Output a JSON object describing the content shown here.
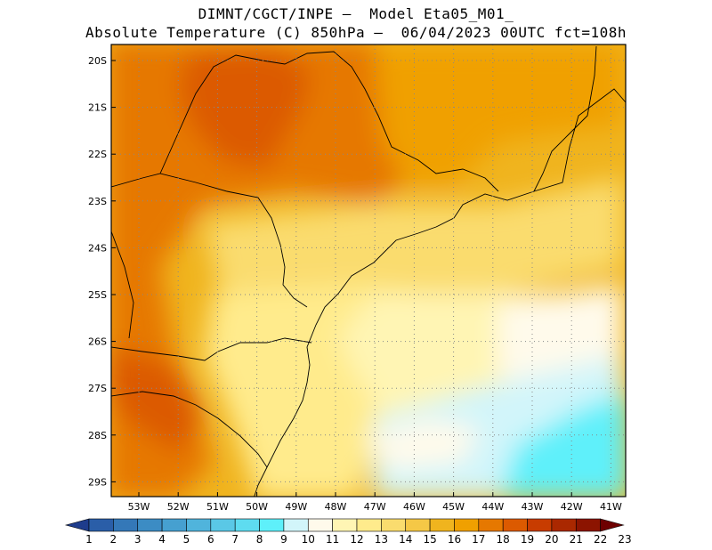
{
  "title_line1": "DIMNT/CGCT/INPE –  Model Eta05_M01_",
  "title_line2": "Absolute Temperature (C) 850hPa –  06/04/2023 00UTC fct=108h",
  "lat_ticks": [
    "20S",
    "21S",
    "22S",
    "23S",
    "24S",
    "25S",
    "26S",
    "27S",
    "28S",
    "29S"
  ],
  "lon_ticks": [
    "53W",
    "52W",
    "51W",
    "50W",
    "49W",
    "48W",
    "47W",
    "46W",
    "45W",
    "44W",
    "43W",
    "42W",
    "41W"
  ],
  "colorbar": {
    "labels": [
      "1",
      "2",
      "3",
      "4",
      "5",
      "6",
      "7",
      "8",
      "9",
      "10",
      "11",
      "12",
      "13",
      "14",
      "15",
      "16",
      "17",
      "18",
      "19",
      "20",
      "21",
      "22",
      "23"
    ],
    "colors": [
      "#1e3c8c",
      "#2a5ea8",
      "#3478b8",
      "#3c8cc4",
      "#46a0d0",
      "#50b4dc",
      "#5ac8e6",
      "#5edcf0",
      "#5ef0fa",
      "#d2f5fa",
      "#fffaeb",
      "#fff5b4",
      "#ffeb8c",
      "#fadc6e",
      "#f5c846",
      "#f0b41e",
      "#f0a000",
      "#e67800",
      "#dc5a00",
      "#c83c00",
      "#aa2800",
      "#8c1400",
      "#6e0000"
    ]
  }
}
